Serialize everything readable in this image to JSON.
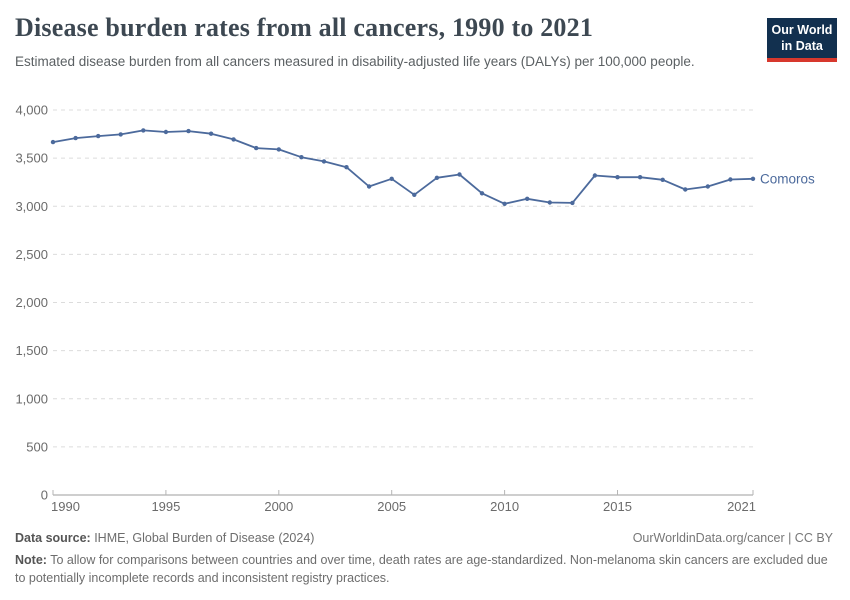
{
  "header": {
    "title": "Disease burden rates from all cancers, 1990 to 2021",
    "subtitle": "Estimated disease burden from all cancers measured in disability-adjusted life years (DALYs) per 100,000 people.",
    "logo": {
      "line1": "Our World",
      "line2": "in Data",
      "bg_color": "#12304f",
      "stripe_color": "#d7382d"
    }
  },
  "chart_data": {
    "type": "line",
    "title": "Disease burden rates from all cancers, 1990 to 2021",
    "xlabel": "",
    "ylabel": "DALYs per 100,000 people",
    "xlim": [
      1990,
      2021
    ],
    "ylim": [
      0,
      4000
    ],
    "grid": "horizontal-dashed",
    "legend_position": "end-of-line",
    "x": [
      1990,
      1991,
      1992,
      1993,
      1994,
      1995,
      1996,
      1997,
      1998,
      1999,
      2000,
      2001,
      2002,
      2003,
      2004,
      2005,
      2006,
      2007,
      2008,
      2009,
      2010,
      2011,
      2012,
      2013,
      2014,
      2015,
      2016,
      2017,
      2018,
      2019,
      2020,
      2021
    ],
    "series": [
      {
        "name": "Comoros",
        "color": "#4c6a9c",
        "values": [
          3667,
          3708,
          3729,
          3747,
          3788,
          3771,
          3781,
          3754,
          3695,
          3604,
          3591,
          3510,
          3466,
          3406,
          3205,
          3285,
          3119,
          3296,
          3330,
          3135,
          3025,
          3077,
          3039,
          3035,
          3320,
          3302,
          3302,
          3275,
          3174,
          3205,
          3278,
          3285
        ]
      }
    ],
    "xticks": [
      1990,
      1995,
      2000,
      2005,
      2010,
      2015,
      2021
    ],
    "xtick_labels": [
      "1990",
      "1995",
      "2000",
      "2005",
      "2010",
      "2015",
      "2021"
    ],
    "yticks": [
      0,
      500,
      1000,
      1500,
      2000,
      2500,
      3000,
      3500,
      4000
    ],
    "ytick_labels": [
      "0",
      "500",
      "1,000",
      "1,500",
      "2,000",
      "2,500",
      "3,000",
      "3,500",
      "4,000"
    ],
    "axis_color": "#9e9e9e",
    "grid_color": "#dcdcdc",
    "tick_text_color": "#6b6b6b"
  },
  "footer": {
    "datasource_label": "Data source:",
    "datasource_value": " IHME, Global Burden of Disease (2024)",
    "license": "OurWorldinData.org/cancer | CC BY",
    "note_label": "Note:",
    "note_value": " To allow for comparisons between countries and over time, death rates are age-standardized. Non-melanoma skin cancers are excluded due to potentially incomplete records and inconsistent registry practices."
  }
}
